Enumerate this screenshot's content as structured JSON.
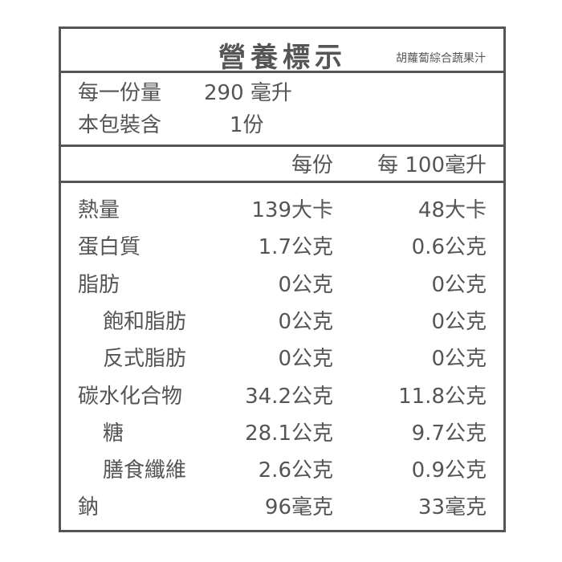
{
  "title": "營養標示",
  "product_name": "胡蘿蔔綜合蔬果汁",
  "serving": {
    "serving_size_label": "每一份量",
    "serving_size_value": "290 毫升",
    "servings_label": "本包裝含",
    "servings_value": "1份"
  },
  "columns": {
    "per_serving": "每份",
    "per_100": "每 100毫升"
  },
  "nutrients": [
    {
      "name": "熱量",
      "per_serving": "139大卡",
      "per_100": "48大卡",
      "indent": false
    },
    {
      "name": "蛋白質",
      "per_serving": "1.7公克",
      "per_100": "0.6公克",
      "indent": false
    },
    {
      "name": "脂肪",
      "per_serving": "0公克",
      "per_100": "0公克",
      "indent": false
    },
    {
      "name": "飽和脂肪",
      "per_serving": "0公克",
      "per_100": "0公克",
      "indent": true
    },
    {
      "name": "反式脂肪",
      "per_serving": "0公克",
      "per_100": "0公克",
      "indent": true
    },
    {
      "name": "碳水化合物",
      "per_serving": "34.2公克",
      "per_100": "11.8公克",
      "indent": false
    },
    {
      "name": "糖",
      "per_serving": "28.1公克",
      "per_100": "9.7公克",
      "indent": true
    },
    {
      "name": "膳食纖維",
      "per_serving": "2.6公克",
      "per_100": "0.9公克",
      "indent": true
    },
    {
      "name": "鈉",
      "per_serving": "96毫克",
      "per_100": "33毫克",
      "indent": false
    }
  ]
}
